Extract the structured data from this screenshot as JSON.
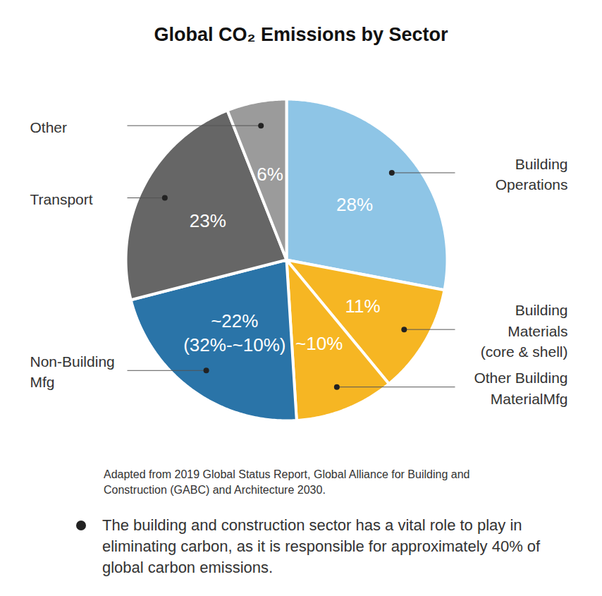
{
  "chart_data": {
    "type": "pie",
    "title": "Global CO₂ Emissions by Sector",
    "categories": [
      "Building\nOperations",
      "Building\nMaterials\n(core & shell)",
      "Other Building\nMaterialMfg",
      "Non-Building\nMfg",
      "Transport",
      "Other"
    ],
    "values": [
      28,
      11,
      10,
      22,
      23,
      6
    ],
    "value_labels": [
      "28%",
      "11%",
      "~10%",
      "~22%\n(32%-~10%)",
      "23%",
      "6%"
    ],
    "colors": [
      "#8ec5e6",
      "#f6b623",
      "#f6b623",
      "#2a74a8",
      "#666666",
      "#9b9b9b"
    ],
    "data_labels": true,
    "source": "Adapted from 2019 Global Status Report, Global Alliance for Building and Construction (GABC) and Architecture 2030.",
    "annotation": "The building and construction sector has a vital role to play in eliminating carbon, as it is responsible for approximately 40% of global carbon emissions."
  }
}
